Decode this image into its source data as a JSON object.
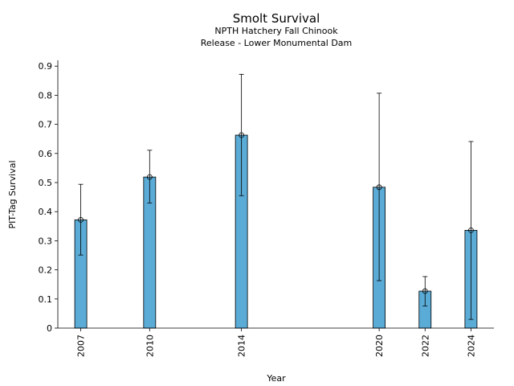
{
  "chart_data": {
    "type": "bar",
    "title": "Smolt Survival",
    "subtitle": [
      "NPTH Hatchery Fall Chinook",
      "Release - Lower Monumental Dam"
    ],
    "xlabel": "Year",
    "ylabel": "PIT-Tag Survival",
    "x": [
      2007,
      2010,
      2014,
      2020,
      2022,
      2024
    ],
    "x_tick_labels": [
      "2007",
      "2010",
      "2014",
      "2020",
      "2022",
      "2024"
    ],
    "xlim": [
      2006,
      2025
    ],
    "values": [
      0.372,
      0.519,
      0.663,
      0.484,
      0.127,
      0.336
    ],
    "error_low": [
      0.251,
      0.43,
      0.455,
      0.163,
      0.076,
      0.03
    ],
    "error_high": [
      0.494,
      0.611,
      0.872,
      0.807,
      0.177,
      0.641
    ],
    "ylim": [
      0,
      0.92
    ],
    "y_ticks": [
      0,
      0.1,
      0.2,
      0.3,
      0.4,
      0.5,
      0.6,
      0.7,
      0.8,
      0.9
    ],
    "y_tick_labels": [
      "0",
      "0.1",
      "0.2",
      "0.3",
      "0.4",
      "0.5",
      "0.6",
      "0.7",
      "0.8",
      "0.9"
    ],
    "bar_color": "#5aabd6",
    "grid": false,
    "legend": "none"
  }
}
